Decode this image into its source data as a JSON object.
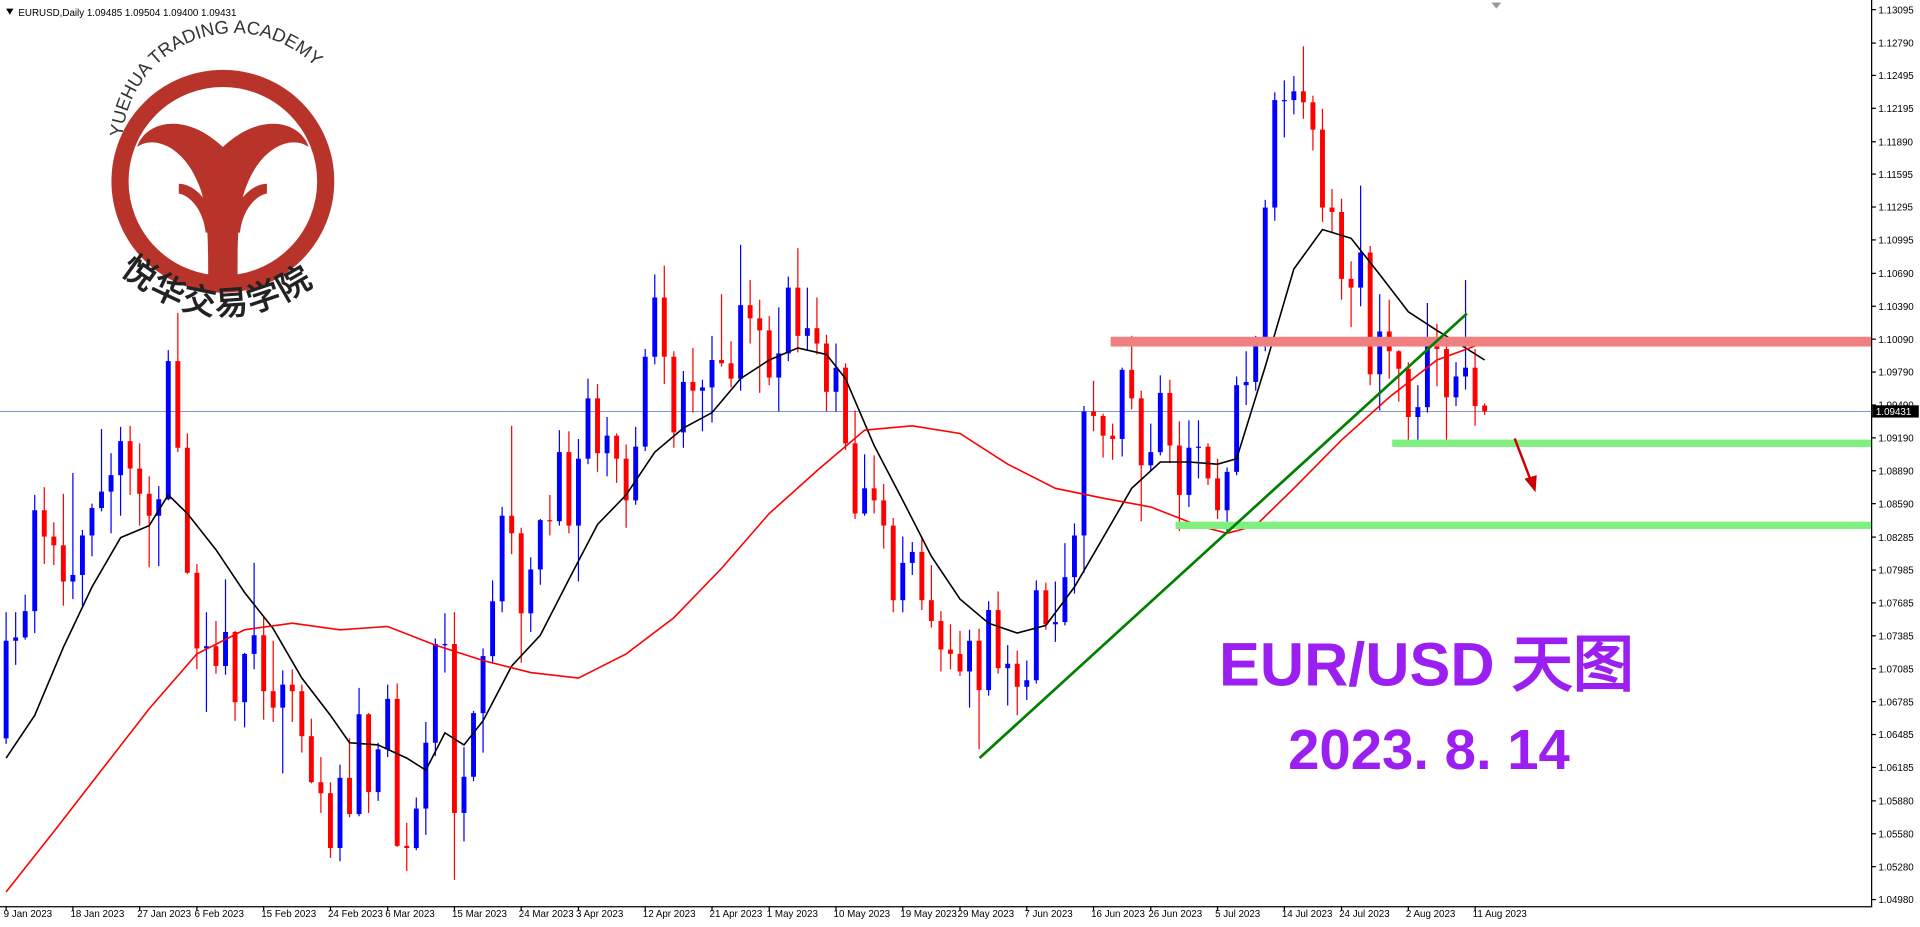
{
  "chart_data": {
    "type": "candlestick",
    "header": "EURUSD,Daily  1.09485 1.09504 1.09400 1.09431",
    "title": "EUR/USD 天图",
    "subtitle": "2023. 8. 14",
    "categories": [
      "9 Jan 2023",
      null,
      null,
      null,
      null,
      null,
      null,
      "18 Jan 2023",
      null,
      null,
      null,
      null,
      null,
      null,
      "27 Jan 2023",
      null,
      null,
      null,
      null,
      null,
      "6 Feb 2023",
      null,
      null,
      null,
      null,
      null,
      null,
      "15 Feb 2023",
      null,
      null,
      null,
      null,
      null,
      null,
      "24 Feb 2023",
      null,
      null,
      null,
      null,
      null,
      "6 Mar 2023",
      null,
      null,
      null,
      null,
      null,
      null,
      "15 Mar 2023",
      null,
      null,
      null,
      null,
      null,
      null,
      "24 Mar 2023",
      null,
      null,
      null,
      null,
      null,
      "3 Apr 2023",
      null,
      null,
      null,
      null,
      null,
      null,
      "12 Apr 2023",
      null,
      null,
      null,
      null,
      null,
      null,
      "21 Apr 2023",
      null,
      null,
      null,
      null,
      null,
      "1 May 2023",
      null,
      null,
      null,
      null,
      null,
      null,
      "10 May 2023",
      null,
      null,
      null,
      null,
      null,
      null,
      "19 May 2023",
      null,
      null,
      null,
      null,
      null,
      "29 May 2023",
      null,
      null,
      null,
      null,
      null,
      null,
      "7 Jun 2023",
      null,
      null,
      null,
      null,
      null,
      null,
      "16 Jun 2023",
      null,
      null,
      null,
      null,
      null,
      "26 Jun 2023",
      null,
      null,
      null,
      null,
      null,
      null,
      "5 Jul 2023",
      null,
      null,
      null,
      null,
      null,
      null,
      "14 Jul 2023",
      null,
      null,
      null,
      null,
      null,
      "24 Jul 2023",
      null,
      null,
      null,
      null,
      null,
      null,
      "2 Aug 2023",
      null,
      null,
      null,
      null,
      null,
      null,
      "11 Aug 2023",
      null
    ],
    "candles": [
      [
        1.0645,
        1.076,
        1.064,
        1.0734
      ],
      [
        1.0734,
        1.076,
        1.0712,
        1.0737
      ],
      [
        1.0737,
        1.0776,
        1.0735,
        1.0761
      ],
      [
        1.0761,
        1.0867,
        1.0741,
        1.0853
      ],
      [
        1.0853,
        1.0874,
        1.0804,
        1.0829
      ],
      [
        1.0829,
        1.0842,
        1.0803,
        1.0821
      ],
      [
        1.0821,
        1.0868,
        1.0766,
        1.0788
      ],
      [
        1.0788,
        1.0887,
        1.0772,
        1.0794
      ],
      [
        1.0794,
        1.0835,
        1.0766,
        1.083
      ],
      [
        1.083,
        1.0859,
        1.0811,
        1.0855
      ],
      [
        1.0855,
        1.0927,
        1.0852,
        1.087
      ],
      [
        1.087,
        1.0905,
        1.0832,
        1.0885
      ],
      [
        1.0885,
        1.0929,
        1.0848,
        1.0916
      ],
      [
        1.0916,
        1.093,
        1.0867,
        1.0891
      ],
      [
        1.0891,
        1.0914,
        1.0839,
        1.0868
      ],
      [
        1.0868,
        1.0884,
        1.0801,
        1.0848
      ],
      [
        1.0848,
        1.0875,
        1.0802,
        1.0863
      ],
      [
        1.0863,
        1.0999,
        1.0862,
        1.0989
      ],
      [
        1.0989,
        1.1033,
        1.0906,
        1.091
      ],
      [
        1.091,
        1.0923,
        1.0795,
        1.0796
      ],
      [
        1.0796,
        1.0804,
        1.0708,
        1.0727
      ],
      [
        1.0727,
        1.076,
        1.0669,
        1.0729
      ],
      [
        1.0729,
        1.0752,
        1.0704,
        1.0711
      ],
      [
        1.0711,
        1.079,
        1.0703,
        1.0742
      ],
      [
        1.0742,
        1.0743,
        1.0661,
        1.0678
      ],
      [
        1.0678,
        1.0723,
        1.0655,
        1.0722
      ],
      [
        1.0722,
        1.0805,
        1.0708,
        1.0739
      ],
      [
        1.0739,
        1.0757,
        1.0662,
        1.0688
      ],
      [
        1.0688,
        1.0734,
        1.066,
        1.0673
      ],
      [
        1.0673,
        1.0707,
        1.0613,
        1.0694
      ],
      [
        1.0694,
        1.0708,
        1.066,
        1.0688
      ],
      [
        1.0688,
        1.0694,
        1.0632,
        1.0647
      ],
      [
        1.0647,
        1.0663,
        1.0604,
        1.0605
      ],
      [
        1.0605,
        1.0628,
        1.0577,
        1.0595
      ],
      [
        1.0595,
        1.0605,
        1.0536,
        1.0545
      ],
      [
        1.0545,
        1.0621,
        1.0533,
        1.0609
      ],
      [
        1.0609,
        1.0645,
        1.0573,
        1.0576
      ],
      [
        1.0576,
        1.0691,
        1.0574,
        1.0667
      ],
      [
        1.0667,
        1.0668,
        1.0577,
        1.0596
      ],
      [
        1.0596,
        1.0641,
        1.0588,
        1.0635
      ],
      [
        1.0635,
        1.0694,
        1.0628,
        1.0681
      ],
      [
        1.0681,
        1.0695,
        1.0546,
        1.0547
      ],
      [
        1.0547,
        1.0568,
        1.0524,
        1.0545
      ],
      [
        1.0545,
        1.0591,
        1.0543,
        1.0581
      ],
      [
        1.0581,
        1.066,
        1.0557,
        1.0641
      ],
      [
        1.0641,
        1.0736,
        1.0629,
        1.0731
      ],
      [
        1.0731,
        1.0759,
        1.0705,
        1.0731
      ],
      [
        1.0731,
        1.076,
        1.0516,
        1.0577
      ],
      [
        1.0577,
        1.0637,
        1.0551,
        1.061
      ],
      [
        1.061,
        1.067,
        1.0606,
        1.0668
      ],
      [
        1.0668,
        1.0727,
        1.0632,
        1.072
      ],
      [
        1.072,
        1.0789,
        1.0713,
        1.077
      ],
      [
        1.077,
        1.0856,
        1.076,
        1.0848
      ],
      [
        1.0848,
        1.093,
        1.0813,
        1.0832
      ],
      [
        1.0832,
        1.0837,
        1.0714,
        1.0759
      ],
      [
        1.0759,
        1.081,
        1.0742,
        1.0799
      ],
      [
        1.0799,
        1.0845,
        1.0785,
        1.0844
      ],
      [
        1.0844,
        1.0867,
        1.083,
        1.0843
      ],
      [
        1.0843,
        1.0926,
        1.0839,
        1.0906
      ],
      [
        1.0906,
        1.0925,
        1.0832,
        1.0839
      ],
      [
        1.0839,
        1.0918,
        1.0788,
        1.09
      ],
      [
        1.09,
        1.0973,
        1.0895,
        1.0955
      ],
      [
        1.0955,
        1.0968,
        1.0888,
        1.0905
      ],
      [
        1.0905,
        1.0938,
        1.0884,
        1.0921
      ],
      [
        1.0921,
        1.0923,
        1.0878,
        1.09
      ],
      [
        1.09,
        1.0913,
        1.0837,
        1.0862
      ],
      [
        1.0862,
        1.0929,
        1.0858,
        1.0911
      ],
      [
        1.0911,
        1.1,
        1.0907,
        1.0993
      ],
      [
        1.0993,
        1.1068,
        1.0986,
        1.1047
      ],
      [
        1.1047,
        1.1076,
        1.0968,
        1.0993
      ],
      [
        1.0993,
        1.0998,
        1.091,
        1.0924
      ],
      [
        1.0924,
        1.098,
        1.091,
        1.097
      ],
      [
        1.097,
        1.1001,
        1.0942,
        1.0962
      ],
      [
        1.0962,
        1.0972,
        1.0925,
        1.0965
      ],
      [
        1.0965,
        1.1012,
        1.0933,
        1.099
      ],
      [
        1.099,
        1.105,
        1.0984,
        1.0987
      ],
      [
        1.0987,
        1.1007,
        1.0965,
        1.0973
      ],
      [
        1.0973,
        1.1095,
        1.0962,
        1.104
      ],
      [
        1.104,
        1.1063,
        1.1005,
        1.1028
      ],
      [
        1.1028,
        1.1045,
        1.096,
        1.1017
      ],
      [
        1.1017,
        1.103,
        1.0967,
        1.0974
      ],
      [
        1.0974,
        1.1038,
        1.0943,
        1.0996
      ],
      [
        1.0996,
        1.1066,
        1.0989,
        1.1056
      ],
      [
        1.1056,
        1.1092,
        1.0997,
        1.1012
      ],
      [
        1.1012,
        1.1056,
        1.0999,
        1.1019
      ],
      [
        1.1019,
        1.1047,
        1.0995,
        1.1005
      ],
      [
        1.1005,
        1.1013,
        1.0943,
        1.0961
      ],
      [
        1.0961,
        1.1005,
        1.0943,
        1.0983
      ],
      [
        1.0983,
        1.0987,
        1.0908,
        1.0914
      ],
      [
        1.0914,
        1.0944,
        1.0845,
        1.085
      ],
      [
        1.085,
        1.0904,
        1.0848,
        1.0873
      ],
      [
        1.0873,
        1.0903,
        1.085,
        1.0862
      ],
      [
        1.0862,
        1.0877,
        1.0818,
        1.0839
      ],
      [
        1.0839,
        1.0846,
        1.076,
        1.0771
      ],
      [
        1.0771,
        1.0829,
        1.076,
        1.0805
      ],
      [
        1.0805,
        1.0824,
        1.0794,
        1.0815
      ],
      [
        1.0815,
        1.0829,
        1.0762,
        1.0771
      ],
      [
        1.0771,
        1.0803,
        1.0746,
        1.0752
      ],
      [
        1.0752,
        1.0761,
        1.0706,
        1.0726
      ],
      [
        1.0726,
        1.0749,
        1.0708,
        1.0722
      ],
      [
        1.0722,
        1.0743,
        1.0702,
        1.0706
      ],
      [
        1.0706,
        1.0744,
        1.0673,
        1.0734
      ],
      [
        1.0734,
        1.0745,
        1.0635,
        1.0689
      ],
      [
        1.0689,
        1.077,
        1.0684,
        1.0762
      ],
      [
        1.0762,
        1.0779,
        1.0704,
        1.0709
      ],
      [
        1.0709,
        1.073,
        1.0675,
        1.0713
      ],
      [
        1.0713,
        1.0725,
        1.0666,
        1.0692
      ],
      [
        1.0692,
        1.0716,
        1.068,
        1.0698
      ],
      [
        1.0698,
        1.0789,
        1.0695,
        1.078
      ],
      [
        1.078,
        1.0787,
        1.0744,
        1.0749
      ],
      [
        1.0749,
        1.0788,
        1.0733,
        1.0751
      ],
      [
        1.0751,
        1.0823,
        1.0748,
        1.0792
      ],
      [
        1.0792,
        1.0841,
        1.0777,
        1.083
      ],
      [
        1.083,
        1.0948,
        1.0796,
        1.0943
      ],
      [
        1.0943,
        1.0971,
        1.0925,
        1.0939
      ],
      [
        1.0939,
        1.0941,
        1.0901,
        1.0921
      ],
      [
        1.0921,
        1.0932,
        1.0899,
        1.0918
      ],
      [
        1.0918,
        1.0983,
        1.0902,
        1.0981
      ],
      [
        1.0981,
        1.1012,
        1.0945,
        1.0955
      ],
      [
        1.0955,
        1.0962,
        1.0843,
        1.0894
      ],
      [
        1.0894,
        1.0932,
        1.0889,
        1.0906
      ],
      [
        1.0906,
        1.0976,
        1.0903,
        1.096
      ],
      [
        1.096,
        1.0972,
        1.0896,
        1.0912
      ],
      [
        1.0912,
        1.0934,
        1.0834,
        1.0867
      ],
      [
        1.0867,
        1.0935,
        1.0856,
        1.091
      ],
      [
        1.091,
        1.0935,
        1.0882,
        1.0911
      ],
      [
        1.0911,
        1.0914,
        1.0876,
        1.0882
      ],
      [
        1.0882,
        1.09,
        1.0845,
        1.0853
      ],
      [
        1.0853,
        1.0892,
        1.0834,
        1.0888
      ],
      [
        1.0888,
        1.0975,
        1.0885,
        1.0967
      ],
      [
        1.0967,
        1.0998,
        1.0949,
        1.097
      ],
      [
        1.097,
        1.1012,
        1.0962,
        1.1009
      ],
      [
        1.1009,
        1.1136,
        1.0998,
        1.1129
      ],
      [
        1.1129,
        1.1234,
        1.1117,
        1.1227
      ],
      [
        1.1227,
        1.1245,
        1.1193,
        1.1227
      ],
      [
        1.1227,
        1.1249,
        1.1214,
        1.1235
      ],
      [
        1.1235,
        1.1276,
        1.121,
        1.1225
      ],
      [
        1.1225,
        1.1231,
        1.1181,
        1.12
      ],
      [
        1.12,
        1.1219,
        1.1116,
        1.1129
      ],
      [
        1.1129,
        1.1146,
        1.1106,
        1.1125
      ],
      [
        1.1125,
        1.1137,
        1.1045,
        1.1064
      ],
      [
        1.1064,
        1.108,
        1.102,
        1.1056
      ],
      [
        1.1056,
        1.1149,
        1.1039,
        1.1088
      ],
      [
        1.1088,
        1.1094,
        1.0967,
        1.0977
      ],
      [
        1.0977,
        1.105,
        1.0944,
        1.1016
      ],
      [
        1.1016,
        1.1045,
        1.0973,
        1.0998
      ],
      [
        1.0998,
        1.0999,
        1.0952,
        1.0982
      ],
      [
        1.0982,
        1.0988,
        1.0912,
        1.0938
      ],
      [
        1.0938,
        1.0967,
        1.0911,
        1.0947
      ],
      [
        1.0947,
        1.1042,
        1.0942,
        1.1006
      ],
      [
        1.1006,
        1.1023,
        1.0966,
        1.1
      ],
      [
        1.1,
        1.1004,
        1.0913,
        1.0956
      ],
      [
        1.0956,
        1.0988,
        1.0948,
        1.0975
      ],
      [
        1.0975,
        1.1063,
        1.0963,
        1.0983
      ],
      [
        1.0983,
        1.1,
        1.093,
        1.0948
      ],
      [
        1.09485,
        1.09504,
        1.094,
        1.09431
      ]
    ],
    "up_color": "#0000ff",
    "down_color": "#ff0000",
    "series": [
      {
        "color": "#000000",
        "x": [
          0,
          3,
          6,
          9,
          12,
          15,
          17,
          19,
          22,
          25,
          28,
          31,
          34,
          36,
          39,
          42,
          44,
          46,
          48,
          50,
          53,
          56,
          59,
          62,
          65,
          68,
          71,
          74,
          77,
          80,
          83,
          86,
          88,
          91,
          94,
          97,
          100,
          103,
          106,
          109,
          112,
          115,
          118,
          121,
          124,
          127,
          129,
          132,
          135,
          138,
          141,
          144,
          147,
          150,
          153,
          155
        ],
        "values": [
          1.0627,
          1.0666,
          1.0728,
          1.0783,
          1.0828,
          1.0839,
          1.0867,
          1.085,
          1.0817,
          1.0778,
          1.0745,
          1.07,
          1.0666,
          1.0641,
          1.0639,
          1.0627,
          1.0616,
          1.065,
          1.0639,
          1.0661,
          1.0711,
          1.0739,
          1.079,
          1.084,
          1.0867,
          1.0906,
          1.0928,
          1.0942,
          1.0973,
          1.099,
          1.1001,
          1.0995,
          1.0973,
          1.0912,
          1.0862,
          1.0811,
          1.0772,
          1.075,
          1.0741,
          1.0748,
          1.0783,
          1.0828,
          1.0873,
          1.0897,
          1.0897,
          1.0895,
          1.09,
          1.0984,
          1.1073,
          1.1109,
          1.1101,
          1.1068,
          1.1034,
          1.1017,
          1.1001,
          1.099
        ]
      },
      {
        "color": "#ff0000",
        "x": [
          0,
          5,
          10,
          15,
          20,
          25,
          30,
          35,
          40,
          45,
          50,
          55,
          60,
          65,
          70,
          75,
          80,
          85,
          90,
          95,
          100,
          105,
          110,
          115,
          120,
          125,
          128,
          131,
          135,
          140,
          145,
          150,
          155
        ],
        "values": [
          1.0505,
          1.056,
          1.0616,
          1.0672,
          1.0722,
          1.0744,
          1.075,
          1.0744,
          1.0747,
          1.073,
          1.0716,
          1.0705,
          1.07,
          1.0722,
          1.0755,
          1.08,
          1.085,
          1.0889,
          1.0926,
          1.093,
          1.0923,
          1.0895,
          1.0873,
          1.0864,
          1.0856,
          1.0839,
          1.0832,
          1.0839,
          1.0873,
          1.0917,
          1.0956,
          1.099,
          1.1006
        ]
      }
    ],
    "last_price": 1.09431,
    "ylim": [
      1.0492,
      1.1316
    ],
    "yticks": [
      1.13095,
      {
        "value": 1.1279,
        "label": "1.12790"
      },
      1.12495,
      1.12195,
      {
        "value": 1.1189,
        "label": "1.11890"
      },
      1.11595,
      1.11295,
      1.10995,
      {
        "value": 1.1069,
        "label": "1.10690"
      },
      {
        "value": 1.1039,
        "label": "1.10390"
      },
      {
        "value": 1.1009,
        "label": "1.10090"
      },
      {
        "value": 1.0979,
        "label": "1.09790"
      },
      {
        "value": 1.0949,
        "label": "1.09490"
      },
      {
        "value": 1.0919,
        "label": "1.09190"
      },
      {
        "value": 1.0889,
        "label": "1.08890"
      },
      {
        "value": 1.0859,
        "label": "1.08590"
      },
      1.08285,
      1.07985,
      1.07685,
      1.07385,
      1.07085,
      1.06785,
      1.06485,
      1.06185,
      {
        "value": 1.0588,
        "label": "1.05880"
      },
      {
        "value": 1.0558,
        "label": "1.05580"
      },
      {
        "value": 1.0528,
        "label": "1.05280"
      },
      {
        "value": 1.0498,
        "label": "1.04980"
      }
    ]
  },
  "logo": {
    "arc_text": "YUEHUA TRADING ACADEMY",
    "name": "悦华交易学院"
  }
}
